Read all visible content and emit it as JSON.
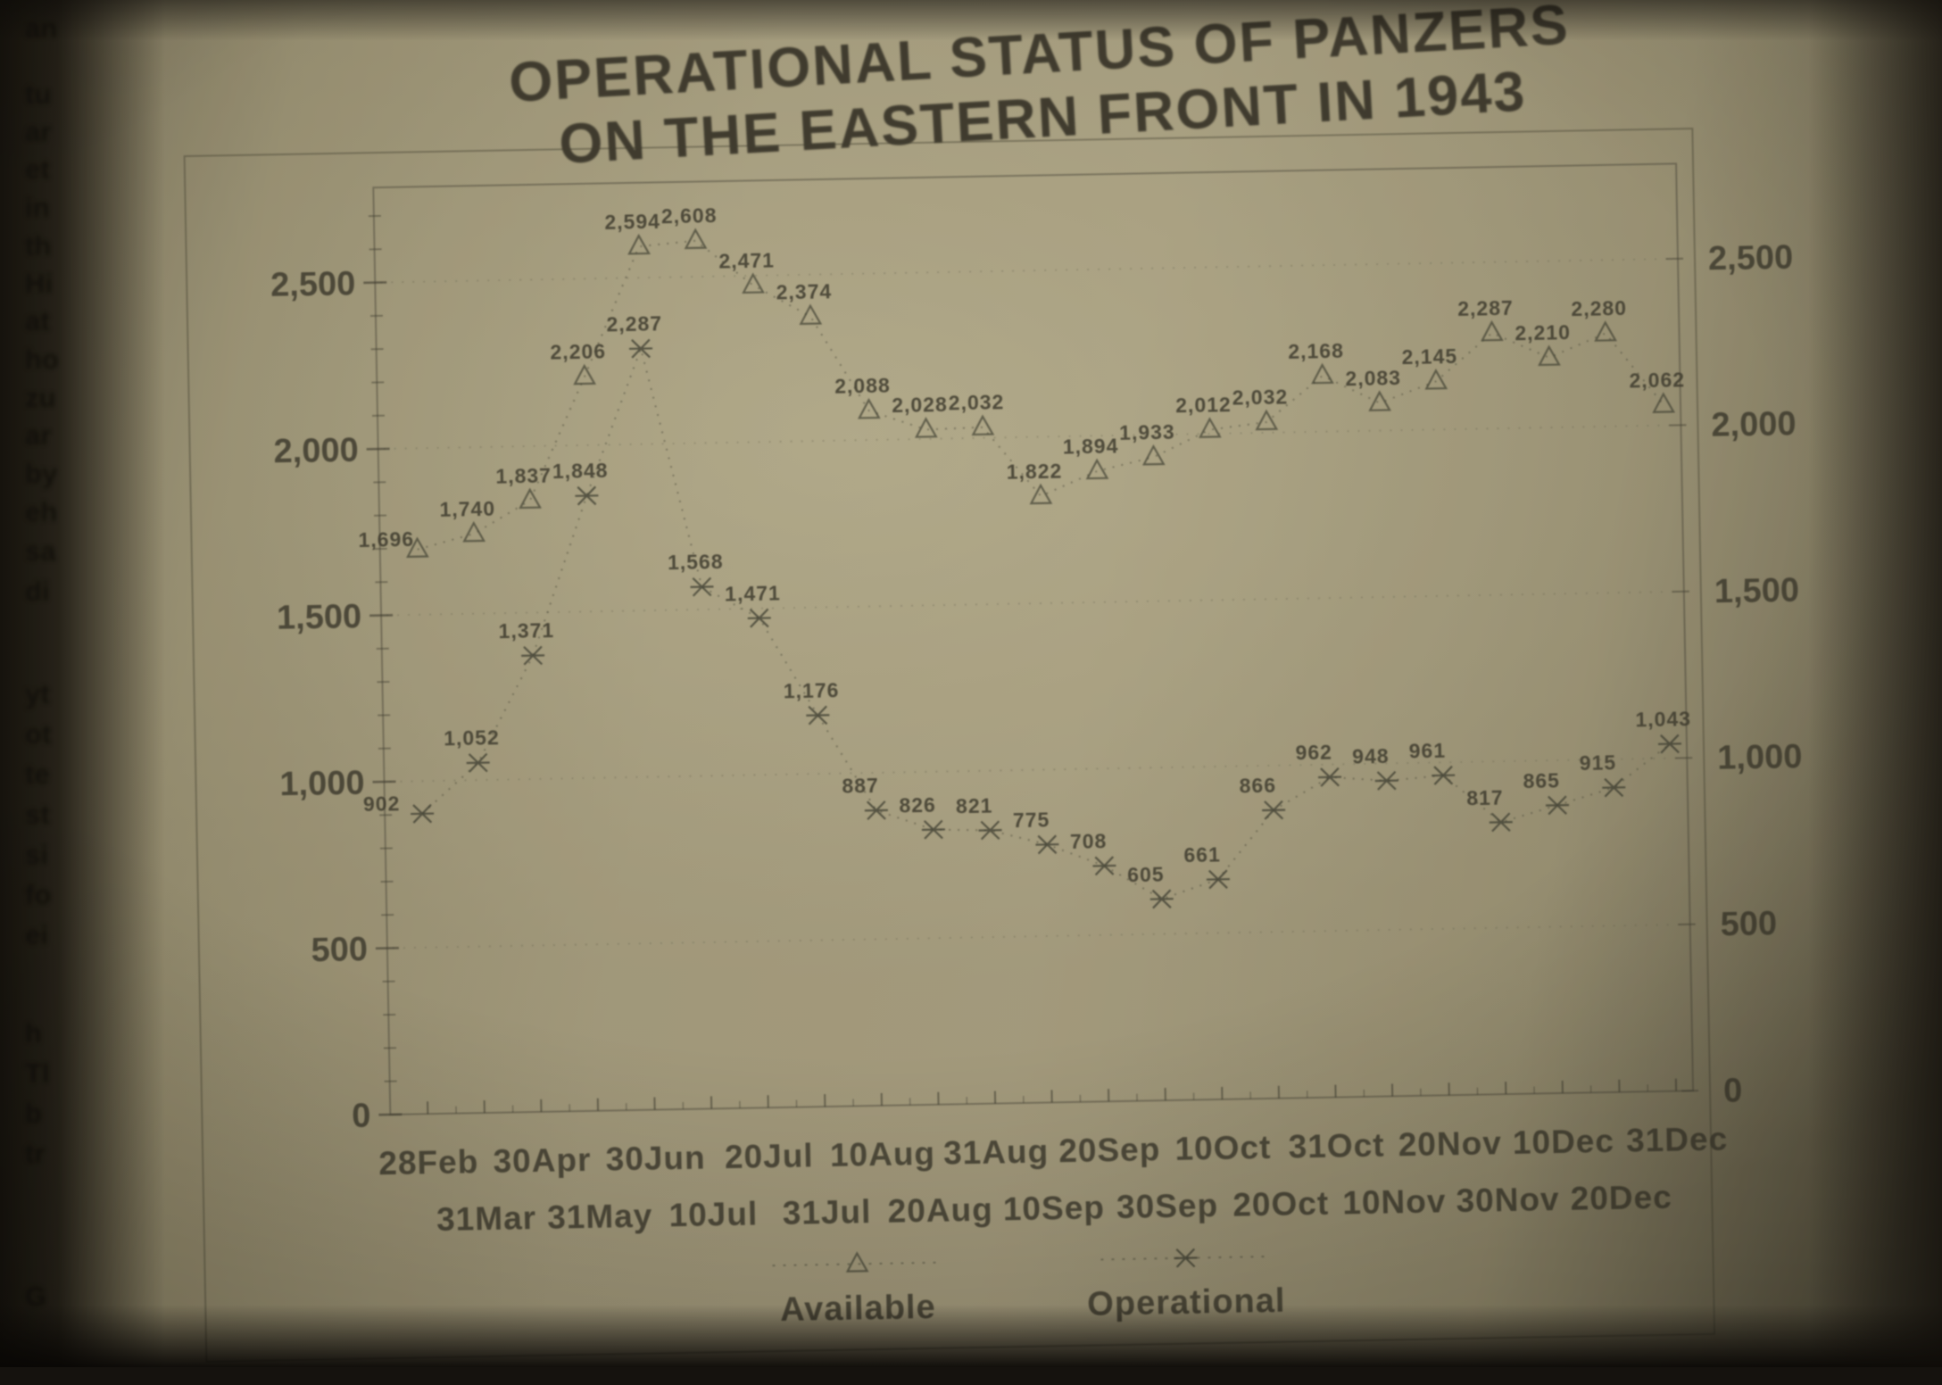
{
  "title_line1": "OPERATIONAL STATUS OF PANZERS",
  "title_line2": "ON THE EASTERN FRONT IN 1943",
  "legend": {
    "available": "Available",
    "operational": "Operational"
  },
  "y_axis": {
    "left_labels": [
      "2,500",
      "2,000",
      "1,500",
      "1,000",
      "500",
      "0"
    ],
    "right_labels": [
      "2,500",
      "2,000",
      "1,500",
      "1,000",
      "500",
      "0"
    ]
  },
  "x_axis": {
    "row1": [
      "28Feb",
      "30Apr",
      "30Jun",
      "20Jul",
      "10Aug",
      "31Aug",
      "20Sep",
      "10Oct",
      "31Oct",
      "20Nov",
      "10Dec",
      "31Dec"
    ],
    "row2": [
      "31Mar",
      "31May",
      "10Jul",
      "31Jul",
      "20Aug",
      "10Sep",
      "30Sep",
      "20Oct",
      "10Nov",
      "30Nov",
      "20Dec"
    ]
  },
  "chart_data": {
    "type": "line",
    "title": "OPERATIONAL STATUS OF PANZERS ON THE EASTERN FRONT IN 1943",
    "categories": [
      "28Feb",
      "31Mar",
      "30Apr",
      "31May",
      "30Jun",
      "10Jul",
      "20Jul",
      "31Jul",
      "10Aug",
      "20Aug",
      "31Aug",
      "10Sep",
      "20Sep",
      "30Sep",
      "10Oct",
      "20Oct",
      "31Oct",
      "10Nov",
      "20Nov",
      "30Nov",
      "10Dec",
      "20Dec",
      "31Dec"
    ],
    "series": [
      {
        "name": "Available",
        "marker": "triangle",
        "values": [
          1696,
          1740,
          1837,
          2206,
          2594,
          2608,
          2471,
          2374,
          2088,
          2028,
          2032,
          1822,
          1894,
          1933,
          2012,
          2032,
          2168,
          2083,
          2145,
          2287,
          2210,
          2280,
          2062
        ]
      },
      {
        "name": "Operational",
        "marker": "x",
        "values": [
          902,
          1052,
          1371,
          1848,
          2287,
          1568,
          1471,
          1176,
          887,
          826,
          821,
          775,
          708,
          605,
          661,
          866,
          962,
          948,
          961,
          817,
          865,
          915,
          1043
        ]
      }
    ],
    "ylim": [
      0,
      2780
    ],
    "y_tick_interval": 500,
    "y_minor_tick_interval": 100,
    "grid": "horizontal-dotted",
    "line_style": "dotted",
    "legend_position": "bottom"
  },
  "marginalia": [
    "an",
    "tu",
    "ar",
    "et",
    "in",
    "th",
    "Hi",
    "at",
    "ho",
    "zu",
    "ar",
    "by",
    "eh",
    "sa",
    "di",
    "yt",
    "ot",
    "te",
    "st",
    "si",
    "fo",
    "ei",
    "h",
    "Tl",
    "b",
    "tr",
    "G"
  ],
  "colors": {
    "page": "#a89f82",
    "ink": "#34312a",
    "faint_ink": "#4b4a3c"
  }
}
